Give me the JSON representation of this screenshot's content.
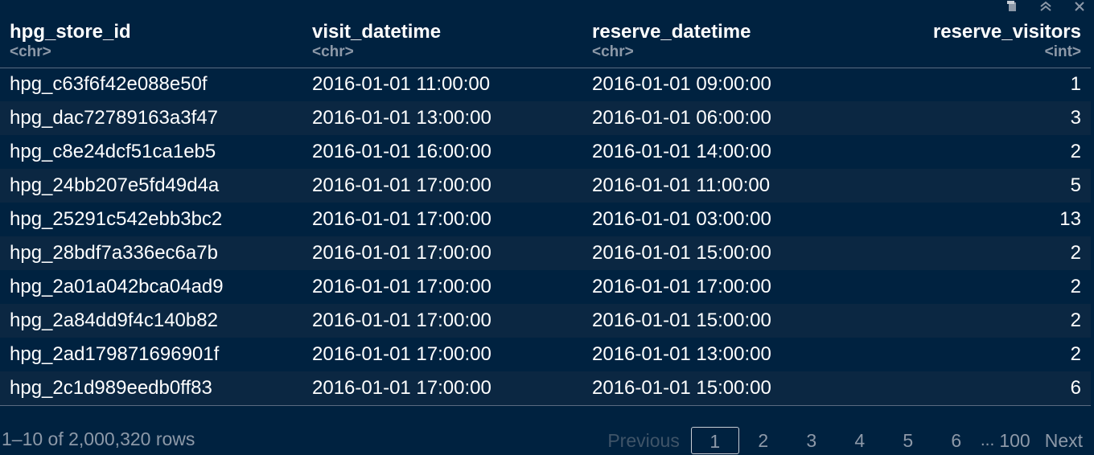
{
  "columns": [
    {
      "name": "hpg_store_id",
      "type": "<chr>"
    },
    {
      "name": "visit_datetime",
      "type": "<chr>"
    },
    {
      "name": "reserve_datetime",
      "type": "<chr>"
    },
    {
      "name": "reserve_visitors",
      "type": "<int>"
    }
  ],
  "rows": [
    [
      "hpg_c63f6f42e088e50f",
      "2016-01-01 11:00:00",
      "2016-01-01 09:00:00",
      "1"
    ],
    [
      "hpg_dac72789163a3f47",
      "2016-01-01 13:00:00",
      "2016-01-01 06:00:00",
      "3"
    ],
    [
      "hpg_c8e24dcf51ca1eb5",
      "2016-01-01 16:00:00",
      "2016-01-01 14:00:00",
      "2"
    ],
    [
      "hpg_24bb207e5fd49d4a",
      "2016-01-01 17:00:00",
      "2016-01-01 11:00:00",
      "5"
    ],
    [
      "hpg_25291c542ebb3bc2",
      "2016-01-01 17:00:00",
      "2016-01-01 03:00:00",
      "13"
    ],
    [
      "hpg_28bdf7a336ec6a7b",
      "2016-01-01 17:00:00",
      "2016-01-01 15:00:00",
      "2"
    ],
    [
      "hpg_2a01a042bca04ad9",
      "2016-01-01 17:00:00",
      "2016-01-01 17:00:00",
      "2"
    ],
    [
      "hpg_2a84dd9f4c140b82",
      "2016-01-01 17:00:00",
      "2016-01-01 15:00:00",
      "2"
    ],
    [
      "hpg_2ad179871696901f",
      "2016-01-01 17:00:00",
      "2016-01-01 13:00:00",
      "2"
    ],
    [
      "hpg_2c1d989eedb0ff83",
      "2016-01-01 17:00:00",
      "2016-01-01 15:00:00",
      "6"
    ]
  ],
  "footer": {
    "row_info": "1–10 of 2,000,320 rows",
    "previous": "Previous",
    "pages": [
      "1",
      "2",
      "3",
      "4",
      "5",
      "6"
    ],
    "ellipsis": "...",
    "last_page": "100",
    "next": "Next"
  },
  "colors": {
    "background": "#002240",
    "text": "#ffffff",
    "muted": "#8d99a8"
  },
  "icons": [
    "export-icon",
    "collapse-icon",
    "close-icon"
  ]
}
